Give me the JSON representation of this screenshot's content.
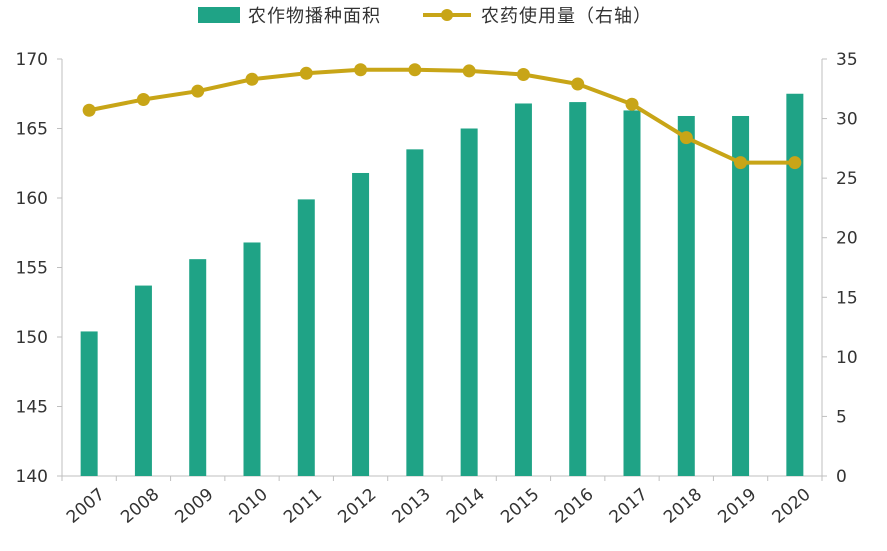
{
  "legend": {
    "bar_label": "农作物播种面积",
    "line_label": "农药使用量（右轴）"
  },
  "colors": {
    "bar": "#1fa386",
    "line": "#c8a517",
    "axis": "#bfbfbf",
    "text": "#333333"
  },
  "chart_data": {
    "type": "bar",
    "categories": [
      "2007",
      "2008",
      "2009",
      "2010",
      "2011",
      "2012",
      "2013",
      "2014",
      "2015",
      "2016",
      "2017",
      "2018",
      "2019",
      "2020"
    ],
    "series": [
      {
        "name": "农作物播种面积",
        "type": "bar",
        "axis": "left",
        "values": [
          150.4,
          153.7,
          155.6,
          156.8,
          159.9,
          161.8,
          163.5,
          165.0,
          166.8,
          166.9,
          166.3,
          165.9,
          165.9,
          167.5
        ]
      },
      {
        "name": "农药使用量（右轴）",
        "type": "line",
        "axis": "right",
        "values": [
          30.7,
          31.6,
          32.3,
          33.3,
          33.8,
          34.1,
          34.1,
          34.0,
          33.7,
          32.9,
          31.2,
          28.4,
          26.3,
          26.3
        ]
      }
    ],
    "y_left": {
      "min": 140,
      "max": 170,
      "ticks": [
        140,
        145,
        150,
        155,
        160,
        165,
        170
      ]
    },
    "y_right": {
      "min": 0,
      "max": 35,
      "ticks": [
        0,
        5,
        10,
        15,
        20,
        25,
        30,
        35
      ]
    },
    "title": "",
    "xlabel": "",
    "ylabel": "",
    "legend_position": "top",
    "grid": false
  }
}
